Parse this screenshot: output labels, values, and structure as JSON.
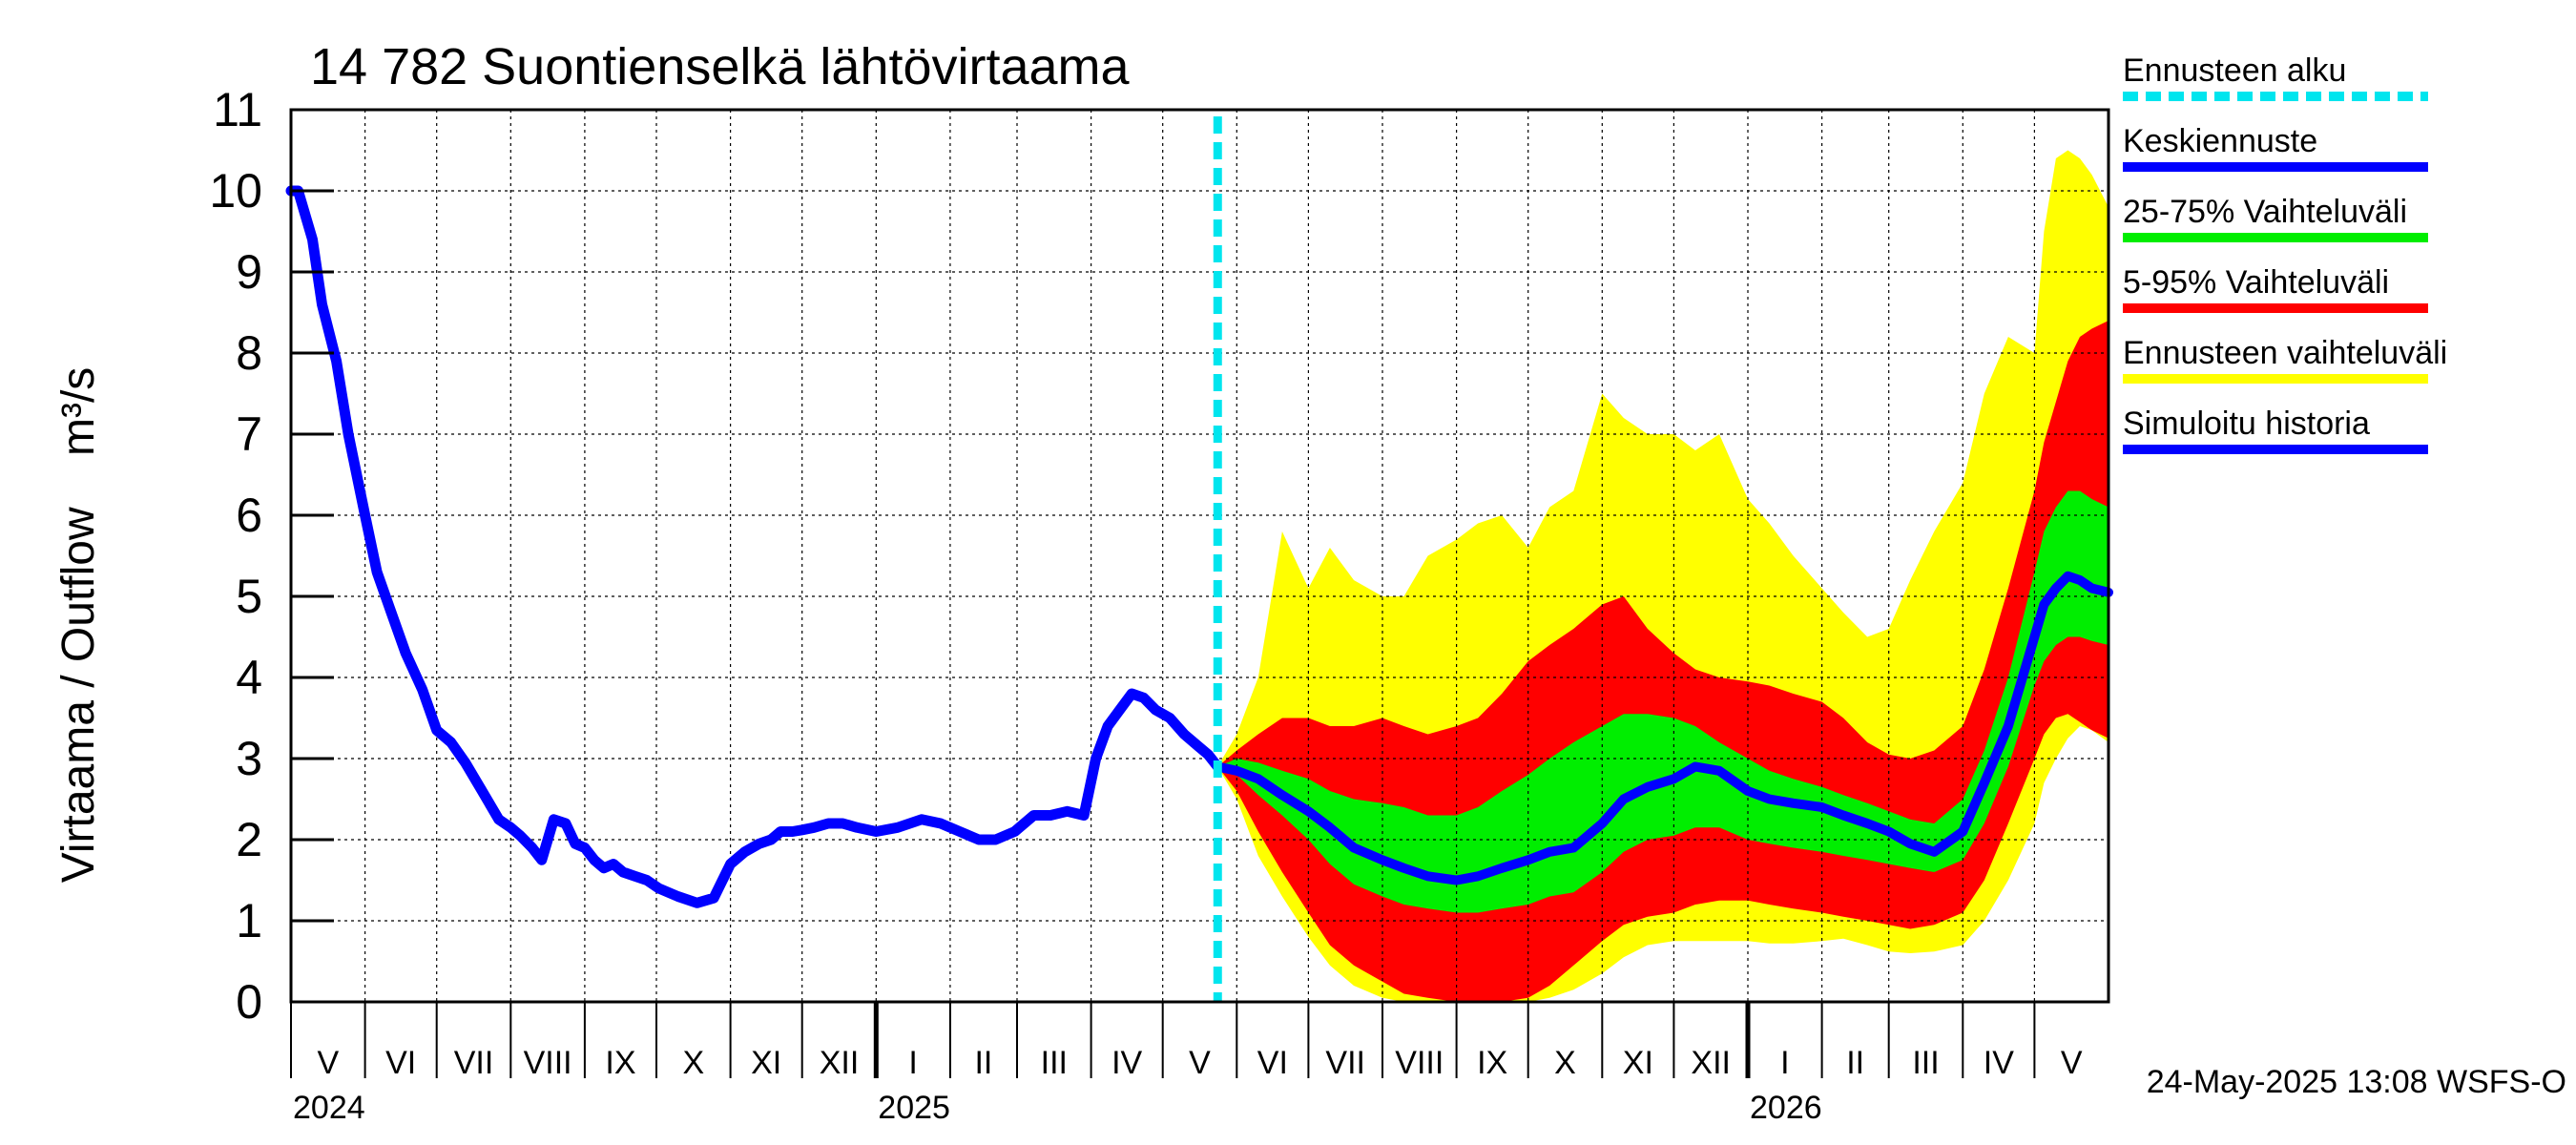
{
  "chart_data": {
    "type": "area",
    "title": "14 782 Suontienselkä lähtövirtaama",
    "ylabel": "Virtaama / Outflow    m³/s",
    "ylim": [
      0,
      11
    ],
    "yticks": [
      "0",
      "1",
      "2",
      "3",
      "4",
      "5",
      "6",
      "7",
      "8",
      "9",
      "10",
      "11"
    ],
    "xlim": [
      "2024-05-01",
      "2026-06-01"
    ],
    "grid": true,
    "legend_position": "right",
    "months": [
      {
        "label": "V",
        "start": "2024-05-01",
        "end": "2024-06-01"
      },
      {
        "label": "VI",
        "start": "2024-06-01",
        "end": "2024-07-01"
      },
      {
        "label": "VII",
        "start": "2024-07-01",
        "end": "2024-08-01"
      },
      {
        "label": "VIII",
        "start": "2024-08-01",
        "end": "2024-09-01"
      },
      {
        "label": "IX",
        "start": "2024-09-01",
        "end": "2024-10-01"
      },
      {
        "label": "X",
        "start": "2024-10-01",
        "end": "2024-11-01"
      },
      {
        "label": "XI",
        "start": "2024-11-01",
        "end": "2024-12-01"
      },
      {
        "label": "XII",
        "start": "2024-12-01",
        "end": "2025-01-01"
      },
      {
        "label": "I",
        "start": "2025-01-01",
        "end": "2025-02-01"
      },
      {
        "label": "II",
        "start": "2025-02-01",
        "end": "2025-03-01"
      },
      {
        "label": "III",
        "start": "2025-03-01",
        "end": "2025-04-01"
      },
      {
        "label": "IV",
        "start": "2025-04-01",
        "end": "2025-05-01"
      },
      {
        "label": "V",
        "start": "2025-05-01",
        "end": "2025-06-01"
      },
      {
        "label": "VI",
        "start": "2025-06-01",
        "end": "2025-07-01"
      },
      {
        "label": "VII",
        "start": "2025-07-01",
        "end": "2025-08-01"
      },
      {
        "label": "VIII",
        "start": "2025-08-01",
        "end": "2025-09-01"
      },
      {
        "label": "IX",
        "start": "2025-09-01",
        "end": "2025-10-01"
      },
      {
        "label": "X",
        "start": "2025-10-01",
        "end": "2025-11-01"
      },
      {
        "label": "XI",
        "start": "2025-11-01",
        "end": "2025-12-01"
      },
      {
        "label": "XII",
        "start": "2025-12-01",
        "end": "2026-01-01"
      },
      {
        "label": "I",
        "start": "2026-01-01",
        "end": "2026-02-01"
      },
      {
        "label": "II",
        "start": "2026-02-01",
        "end": "2026-03-01"
      },
      {
        "label": "III",
        "start": "2026-03-01",
        "end": "2026-04-01"
      },
      {
        "label": "IV",
        "start": "2026-04-01",
        "end": "2026-05-01"
      },
      {
        "label": "V",
        "start": "2026-05-01",
        "end": "2026-06-01"
      }
    ],
    "years": [
      {
        "label": "2024",
        "date": "2024-05-01"
      },
      {
        "label": "2025",
        "date": "2025-01-01"
      },
      {
        "label": "2026",
        "date": "2026-01-01"
      }
    ],
    "forecast_start": "2025-05-24",
    "colors": {
      "forecast_start": "#00e5ee",
      "median": "#0000ff",
      "band_25_75": "#00ee00",
      "band_5_95": "#ff0000",
      "band_full": "#ffff00",
      "history": "#0000ff"
    },
    "legend": [
      {
        "key": "forecast_start",
        "label": "Ennusteen alku",
        "style": "dashed"
      },
      {
        "key": "median",
        "label": "Keskiennuste",
        "style": "solid"
      },
      {
        "key": "band_25_75",
        "label": "25-75% Vaihteluväli",
        "style": "solid"
      },
      {
        "key": "band_5_95",
        "label": "5-95% Vaihteluväli",
        "style": "solid"
      },
      {
        "key": "band_full",
        "label": "Ennusteen vaihteluväli",
        "style": "solid"
      },
      {
        "key": "history",
        "label": "Simuloitu historia",
        "style": "solid"
      }
    ],
    "history": {
      "name": "Simuloitu historia",
      "x": [
        "2024-05-01",
        "2024-05-04",
        "2024-05-10",
        "2024-05-14",
        "2024-05-20",
        "2024-05-25",
        "2024-06-01",
        "2024-06-06",
        "2024-06-12",
        "2024-06-18",
        "2024-06-25",
        "2024-07-01",
        "2024-07-07",
        "2024-07-13",
        "2024-07-20",
        "2024-07-27",
        "2024-08-01",
        "2024-08-05",
        "2024-08-10",
        "2024-08-14",
        "2024-08-19",
        "2024-08-24",
        "2024-08-28",
        "2024-09-01",
        "2024-09-05",
        "2024-09-09",
        "2024-09-13",
        "2024-09-17",
        "2024-09-22",
        "2024-09-27",
        "2024-10-02",
        "2024-10-10",
        "2024-10-18",
        "2024-10-25",
        "2024-11-01",
        "2024-11-07",
        "2024-11-13",
        "2024-11-18",
        "2024-11-22",
        "2024-11-27",
        "2024-12-01",
        "2024-12-06",
        "2024-12-12",
        "2024-12-18",
        "2024-12-24",
        "2025-01-01",
        "2025-01-10",
        "2025-01-20",
        "2025-01-28",
        "2025-02-05",
        "2025-02-13",
        "2025-02-20",
        "2025-02-28",
        "2025-03-08",
        "2025-03-15",
        "2025-03-22",
        "2025-03-29",
        "2025-04-03",
        "2025-04-08",
        "2025-04-13",
        "2025-04-18",
        "2025-04-23",
        "2025-04-28",
        "2025-05-04",
        "2025-05-10",
        "2025-05-16",
        "2025-05-20",
        "2025-05-24"
      ],
      "y": [
        10.0,
        10.0,
        9.4,
        8.6,
        7.9,
        7.0,
        6.0,
        5.3,
        4.8,
        4.3,
        3.85,
        3.35,
        3.2,
        2.95,
        2.6,
        2.25,
        2.15,
        2.05,
        1.9,
        1.75,
        2.25,
        2.2,
        1.95,
        1.9,
        1.75,
        1.65,
        1.7,
        1.6,
        1.55,
        1.5,
        1.4,
        1.3,
        1.22,
        1.28,
        1.7,
        1.85,
        1.95,
        2.0,
        2.1,
        2.1,
        2.12,
        2.15,
        2.2,
        2.2,
        2.15,
        2.1,
        2.15,
        2.25,
        2.2,
        2.1,
        2.0,
        2.0,
        2.1,
        2.3,
        2.3,
        2.35,
        2.3,
        3.0,
        3.4,
        3.6,
        3.8,
        3.75,
        3.6,
        3.5,
        3.3,
        3.15,
        3.05,
        2.9
      ]
    },
    "forecast": {
      "x": [
        "2025-05-24",
        "2025-06-01",
        "2025-06-10",
        "2025-06-20",
        "2025-07-01",
        "2025-07-10",
        "2025-07-20",
        "2025-08-01",
        "2025-08-10",
        "2025-08-20",
        "2025-09-01",
        "2025-09-10",
        "2025-09-20",
        "2025-10-01",
        "2025-10-10",
        "2025-10-20",
        "2025-11-01",
        "2025-11-10",
        "2025-11-20",
        "2025-12-01",
        "2025-12-10",
        "2025-12-20",
        "2026-01-01",
        "2026-01-10",
        "2026-01-20",
        "2026-02-01",
        "2026-02-10",
        "2026-02-20",
        "2026-03-01",
        "2026-03-10",
        "2026-03-20",
        "2026-04-01",
        "2026-04-10",
        "2026-04-20",
        "2026-05-01",
        "2026-05-05",
        "2026-05-10",
        "2026-05-15",
        "2026-05-20",
        "2026-05-25",
        "2026-06-01"
      ],
      "median": [
        2.9,
        2.85,
        2.75,
        2.55,
        2.35,
        2.15,
        1.9,
        1.75,
        1.65,
        1.55,
        1.5,
        1.55,
        1.65,
        1.75,
        1.85,
        1.9,
        2.2,
        2.5,
        2.65,
        2.75,
        2.9,
        2.85,
        2.6,
        2.5,
        2.45,
        2.4,
        2.3,
        2.2,
        2.1,
        1.95,
        1.85,
        2.1,
        2.7,
        3.4,
        4.5,
        4.9,
        5.1,
        5.25,
        5.2,
        5.1,
        5.05
      ],
      "p25": [
        2.9,
        2.8,
        2.55,
        2.3,
        2.0,
        1.7,
        1.45,
        1.3,
        1.2,
        1.15,
        1.1,
        1.1,
        1.15,
        1.2,
        1.3,
        1.35,
        1.6,
        1.85,
        2.0,
        2.05,
        2.15,
        2.15,
        2.0,
        1.95,
        1.9,
        1.85,
        1.8,
        1.75,
        1.7,
        1.65,
        1.6,
        1.75,
        2.2,
        2.9,
        3.9,
        4.2,
        4.4,
        4.5,
        4.5,
        4.45,
        4.4
      ],
      "p75": [
        2.9,
        3.0,
        2.95,
        2.85,
        2.75,
        2.6,
        2.5,
        2.45,
        2.4,
        2.3,
        2.3,
        2.4,
        2.6,
        2.8,
        3.0,
        3.2,
        3.4,
        3.55,
        3.55,
        3.5,
        3.4,
        3.2,
        3.0,
        2.85,
        2.75,
        2.65,
        2.55,
        2.45,
        2.35,
        2.25,
        2.2,
        2.5,
        3.1,
        4.0,
        5.3,
        5.8,
        6.1,
        6.3,
        6.3,
        6.2,
        6.1
      ],
      "p5": [
        2.9,
        2.6,
        2.1,
        1.6,
        1.1,
        0.7,
        0.45,
        0.25,
        0.1,
        0.05,
        0.0,
        0.0,
        0.0,
        0.05,
        0.2,
        0.45,
        0.75,
        0.95,
        1.05,
        1.1,
        1.2,
        1.25,
        1.25,
        1.2,
        1.15,
        1.1,
        1.05,
        1.0,
        0.95,
        0.9,
        0.95,
        1.1,
        1.5,
        2.2,
        3.0,
        3.3,
        3.5,
        3.55,
        3.45,
        3.35,
        3.25
      ],
      "p95": [
        2.9,
        3.1,
        3.3,
        3.5,
        3.5,
        3.4,
        3.4,
        3.5,
        3.4,
        3.3,
        3.4,
        3.5,
        3.8,
        4.2,
        4.4,
        4.6,
        4.9,
        5.0,
        4.6,
        4.3,
        4.1,
        4.0,
        3.95,
        3.9,
        3.8,
        3.7,
        3.5,
        3.2,
        3.05,
        3.0,
        3.1,
        3.4,
        4.1,
        5.1,
        6.3,
        6.9,
        7.4,
        7.9,
        8.2,
        8.3,
        8.4
      ],
      "min": [
        2.9,
        2.5,
        1.8,
        1.3,
        0.8,
        0.45,
        0.2,
        0.05,
        0.0,
        0.0,
        0.0,
        0.0,
        0.0,
        0.0,
        0.05,
        0.15,
        0.35,
        0.55,
        0.7,
        0.75,
        0.75,
        0.75,
        0.75,
        0.72,
        0.72,
        0.75,
        0.78,
        0.7,
        0.62,
        0.6,
        0.62,
        0.7,
        1.0,
        1.5,
        2.2,
        2.7,
        3.0,
        3.25,
        3.4,
        3.35,
        3.2
      ],
      "max": [
        2.9,
        3.3,
        4.0,
        5.8,
        5.1,
        5.6,
        5.2,
        5.0,
        5.0,
        5.5,
        5.7,
        5.9,
        6.0,
        5.6,
        6.1,
        6.3,
        7.5,
        7.2,
        7.0,
        7.0,
        6.8,
        7.0,
        6.2,
        5.9,
        5.5,
        5.1,
        4.8,
        4.5,
        4.6,
        5.2,
        5.8,
        6.4,
        7.5,
        8.2,
        8.0,
        9.5,
        10.4,
        10.5,
        10.4,
        10.2,
        9.8
      ]
    }
  },
  "footer": {
    "timestamp": "24-May-2025 13:08 WSFS-O"
  }
}
